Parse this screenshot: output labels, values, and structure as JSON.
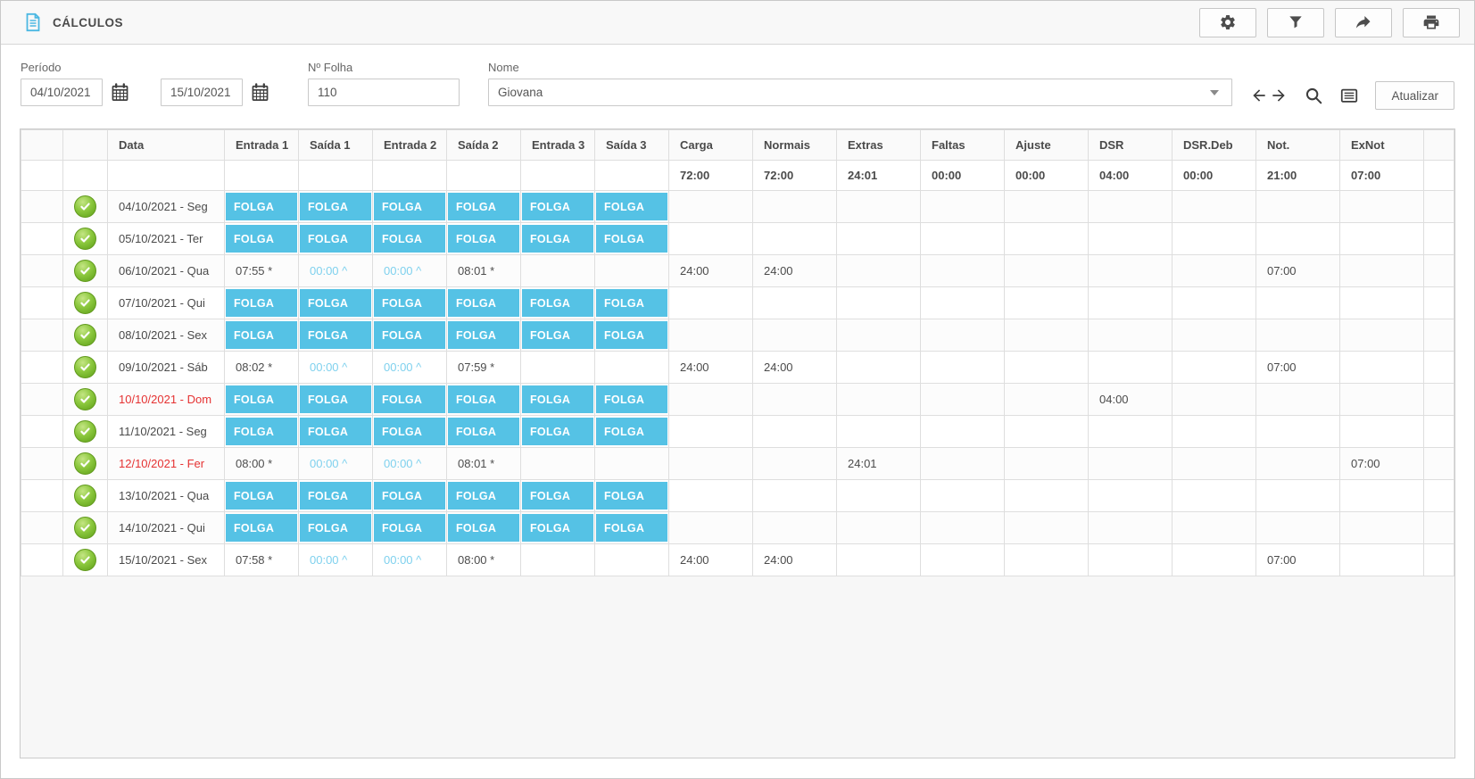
{
  "window": {
    "title": "CÁLCULOS",
    "title_icon": "document-icon"
  },
  "toolbar": {
    "buttons": [
      {
        "name": "settings",
        "icon": "gear-icon"
      },
      {
        "name": "filter",
        "icon": "funnel-icon"
      },
      {
        "name": "export",
        "icon": "forward-arrow-icon"
      },
      {
        "name": "print",
        "icon": "printer-icon"
      }
    ]
  },
  "filters": {
    "periodo_label": "Período",
    "date_from": "04/10/2021",
    "date_to": "15/10/2021",
    "date_icon": "calendar-icon",
    "folha_label": "Nº Folha",
    "folha_value": "110",
    "nome_label": "Nome",
    "nome_value": "Giovana",
    "nav_icons": [
      "arrow-left-icon",
      "arrow-right-icon",
      "search-icon",
      "list-view-icon"
    ],
    "atualizar_label": "Atualizar"
  },
  "table": {
    "columns": [
      "",
      "",
      "Data",
      "Entrada 1",
      "Saída 1",
      "Entrada 2",
      "Saída 2",
      "Entrada 3",
      "Saída 3",
      "Carga",
      "Normais",
      "Extras",
      "Faltas",
      "Ajuste",
      "DSR",
      "DSR.Deb",
      "Not.",
      "ExNot"
    ],
    "totals": {
      "carga": "72:00",
      "normais": "72:00",
      "extras": "24:01",
      "faltas": "00:00",
      "ajuste": "00:00",
      "dsr": "04:00",
      "dsr_deb": "00:00",
      "not": "21:00",
      "exnot": "07:00"
    },
    "rows": [
      {
        "date": "04/10/2021 - Seg",
        "holiday": false,
        "checked": true,
        "punches": [
          "FOLGA",
          "FOLGA",
          "FOLGA",
          "FOLGA",
          "FOLGA",
          "FOLGA"
        ],
        "values": {}
      },
      {
        "date": "05/10/2021 - Ter",
        "holiday": false,
        "checked": true,
        "punches": [
          "FOLGA",
          "FOLGA",
          "FOLGA",
          "FOLGA",
          "FOLGA",
          "FOLGA"
        ],
        "values": {}
      },
      {
        "date": "06/10/2021 - Qua",
        "holiday": false,
        "checked": true,
        "punches": [
          "07:55 *",
          "00:00 ^",
          "00:00 ^",
          "08:01 *",
          "",
          ""
        ],
        "values": {
          "carga": "24:00",
          "normais": "24:00",
          "not": "07:00"
        }
      },
      {
        "date": "07/10/2021 - Qui",
        "holiday": false,
        "checked": true,
        "punches": [
          "FOLGA",
          "FOLGA",
          "FOLGA",
          "FOLGA",
          "FOLGA",
          "FOLGA"
        ],
        "values": {}
      },
      {
        "date": "08/10/2021 - Sex",
        "holiday": false,
        "checked": true,
        "punches": [
          "FOLGA",
          "FOLGA",
          "FOLGA",
          "FOLGA",
          "FOLGA",
          "FOLGA"
        ],
        "values": {}
      },
      {
        "date": "09/10/2021 - Sáb",
        "holiday": false,
        "checked": true,
        "punches": [
          "08:02 *",
          "00:00 ^",
          "00:00 ^",
          "07:59 *",
          "",
          ""
        ],
        "values": {
          "carga": "24:00",
          "normais": "24:00",
          "not": "07:00"
        }
      },
      {
        "date": "10/10/2021 - Dom",
        "holiday": true,
        "checked": true,
        "punches": [
          "FOLGA",
          "FOLGA",
          "FOLGA",
          "FOLGA",
          "FOLGA",
          "FOLGA"
        ],
        "values": {
          "dsr": "04:00"
        }
      },
      {
        "date": "11/10/2021 - Seg",
        "holiday": false,
        "checked": true,
        "punches": [
          "FOLGA",
          "FOLGA",
          "FOLGA",
          "FOLGA",
          "FOLGA",
          "FOLGA"
        ],
        "values": {}
      },
      {
        "date": "12/10/2021 - Fer",
        "holiday": true,
        "checked": true,
        "punches": [
          "08:00 *",
          "00:00 ^",
          "00:00 ^",
          "08:01 *",
          "",
          ""
        ],
        "values": {
          "extras": "24:01",
          "exnot": "07:00"
        }
      },
      {
        "date": "13/10/2021 - Qua",
        "holiday": false,
        "checked": true,
        "punches": [
          "FOLGA",
          "FOLGA",
          "FOLGA",
          "FOLGA",
          "FOLGA",
          "FOLGA"
        ],
        "values": {}
      },
      {
        "date": "14/10/2021 - Qui",
        "holiday": false,
        "checked": true,
        "punches": [
          "FOLGA",
          "FOLGA",
          "FOLGA",
          "FOLGA",
          "FOLGA",
          "FOLGA"
        ],
        "values": {}
      },
      {
        "date": "15/10/2021 - Sex",
        "holiday": false,
        "checked": true,
        "punches": [
          "07:58 *",
          "00:00 ^",
          "00:00 ^",
          "08:00 *",
          "",
          ""
        ],
        "values": {
          "carga": "24:00",
          "normais": "24:00",
          "not": "07:00"
        }
      }
    ]
  },
  "colors": {
    "folga_blue": "#55c2e5",
    "light_time_blue": "#7fd1ee",
    "holiday_red": "#e53232",
    "check_green": "#76b52c",
    "title_icon_blue": "#4cb8e2"
  }
}
